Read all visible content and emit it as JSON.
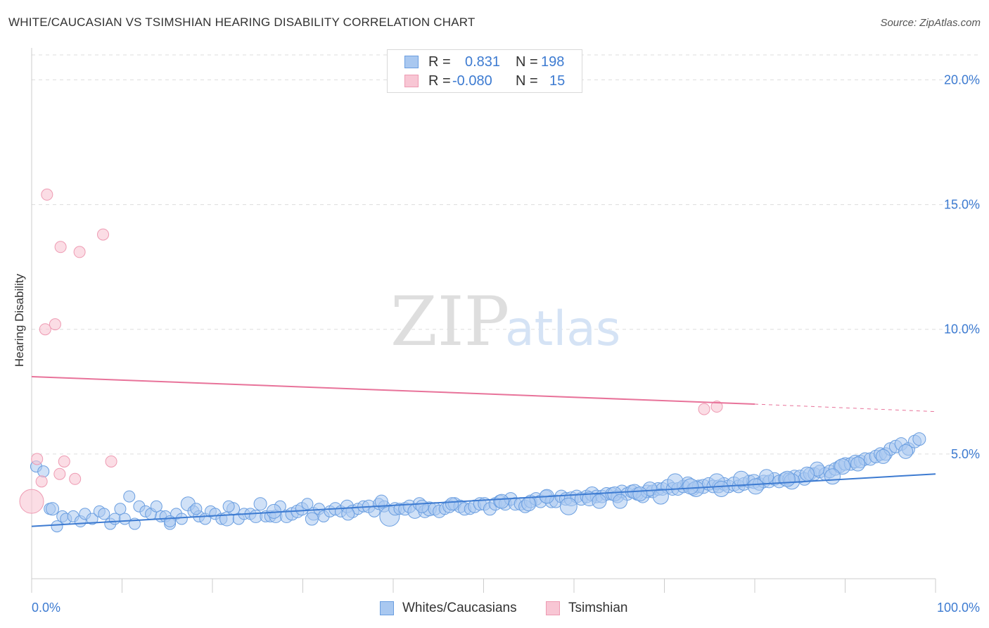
{
  "header": {
    "title": "WHITE/CAUCASIAN VS TSIMSHIAN HEARING DISABILITY CORRELATION CHART",
    "source": "Source: ZipAtlas.com"
  },
  "legend": {
    "rows": [
      {
        "r_label": "R =",
        "r_value": "0.831",
        "n_label": "N =",
        "n_value": "198"
      },
      {
        "r_label": "R =",
        "r_value": "-0.080",
        "n_label": "N =",
        "n_value": "15"
      }
    ]
  },
  "bottom_legend": {
    "series_a": "Whites/Caucasians",
    "series_b": "Tsimshian"
  },
  "watermark": {
    "part1": "ZIP",
    "part2": "atlas"
  },
  "colors": {
    "blue_fill": "#a9c8f0",
    "blue_stroke": "#6a9ee0",
    "blue_line": "#3d7bd1",
    "pink_fill": "#f8c6d4",
    "pink_stroke": "#ee9ab2",
    "pink_line": "#e8739a",
    "axis_text": "#3d7bd1"
  },
  "chart_data": {
    "type": "scatter",
    "title": "WHITE/CAUCASIAN VS TSIMSHIAN HEARING DISABILITY CORRELATION CHART",
    "xlabel": "",
    "ylabel": "Hearing Disability",
    "xlim": [
      0,
      100
    ],
    "ylim": [
      0,
      21
    ],
    "x_tick_labels": [
      "0.0%",
      "100.0%"
    ],
    "y_ticks": [
      5,
      10,
      15,
      20
    ],
    "y_tick_labels": [
      "5.0%",
      "10.0%",
      "15.0%",
      "20.0%"
    ],
    "grid": true,
    "series": [
      {
        "name": "Whites/Caucasians",
        "r": 0.831,
        "n": 198,
        "trend": {
          "x0": 0,
          "y0": 2.1,
          "x1": 100,
          "y1": 4.2
        },
        "points": [
          [
            0.5,
            4.5,
            8
          ],
          [
            1.3,
            4.3,
            8
          ],
          [
            2.0,
            2.8,
            8
          ],
          [
            2.3,
            2.8,
            9
          ],
          [
            2.8,
            2.1,
            8
          ],
          [
            3.4,
            2.5,
            8
          ],
          [
            3.8,
            2.4,
            8
          ],
          [
            4.6,
            2.5,
            8
          ],
          [
            5.4,
            2.3,
            8
          ],
          [
            5.9,
            2.6,
            8
          ],
          [
            6.7,
            2.4,
            8
          ],
          [
            7.5,
            2.7,
            8
          ],
          [
            8.0,
            2.6,
            8
          ],
          [
            8.7,
            2.2,
            8
          ],
          [
            9.2,
            2.4,
            8
          ],
          [
            9.8,
            2.8,
            8
          ],
          [
            10.3,
            2.4,
            8
          ],
          [
            10.8,
            3.3,
            8
          ],
          [
            11.4,
            2.2,
            8
          ],
          [
            11.9,
            2.9,
            8
          ],
          [
            12.6,
            2.7,
            8
          ],
          [
            13.2,
            2.6,
            8
          ],
          [
            13.8,
            2.9,
            8
          ],
          [
            14.3,
            2.5,
            8
          ],
          [
            14.8,
            2.5,
            8
          ],
          [
            15.3,
            2.2,
            8
          ],
          [
            16.0,
            2.6,
            8
          ],
          [
            16.6,
            2.4,
            8
          ],
          [
            17.3,
            3.0,
            10
          ],
          [
            17.9,
            2.7,
            8
          ],
          [
            18.5,
            2.5,
            8
          ],
          [
            19.2,
            2.4,
            8
          ],
          [
            19.8,
            2.7,
            8
          ],
          [
            20.3,
            2.6,
            8
          ],
          [
            21.0,
            2.4,
            8
          ],
          [
            21.6,
            2.4,
            10
          ],
          [
            22.3,
            2.8,
            9
          ],
          [
            22.9,
            2.4,
            8
          ],
          [
            23.5,
            2.6,
            8
          ],
          [
            24.2,
            2.6,
            8
          ],
          [
            24.8,
            2.5,
            9
          ],
          [
            25.3,
            3.0,
            9
          ],
          [
            25.9,
            2.5,
            8
          ],
          [
            26.4,
            2.5,
            8
          ],
          [
            27.0,
            2.5,
            9
          ],
          [
            27.5,
            2.9,
            8
          ],
          [
            28.2,
            2.5,
            9
          ],
          [
            28.8,
            2.6,
            9
          ],
          [
            29.4,
            2.7,
            9
          ],
          [
            29.9,
            2.8,
            9
          ],
          [
            30.5,
            3.0,
            8
          ],
          [
            31.2,
            2.6,
            9
          ],
          [
            31.8,
            2.8,
            8
          ],
          [
            32.3,
            2.5,
            8
          ],
          [
            33.0,
            2.7,
            8
          ],
          [
            33.6,
            2.8,
            9
          ],
          [
            34.2,
            2.7,
            8
          ],
          [
            34.9,
            2.9,
            9
          ],
          [
            35.5,
            2.7,
            9
          ],
          [
            36.1,
            2.8,
            8
          ],
          [
            36.7,
            2.9,
            8
          ],
          [
            37.3,
            2.9,
            9
          ],
          [
            37.9,
            2.7,
            8
          ],
          [
            38.4,
            3.0,
            8
          ],
          [
            39.0,
            2.9,
            8
          ],
          [
            39.6,
            2.5,
            14
          ],
          [
            40.2,
            2.8,
            9
          ],
          [
            40.7,
            2.8,
            8
          ],
          [
            41.3,
            2.8,
            9
          ],
          [
            41.8,
            2.9,
            9
          ],
          [
            42.4,
            2.7,
            10
          ],
          [
            42.9,
            3.0,
            9
          ],
          [
            43.5,
            2.7,
            9
          ],
          [
            44.0,
            2.8,
            10
          ],
          [
            44.6,
            2.8,
            9
          ],
          [
            45.1,
            2.7,
            9
          ],
          [
            45.7,
            2.8,
            8
          ],
          [
            46.2,
            2.9,
            9
          ],
          [
            46.8,
            3.0,
            9
          ],
          [
            47.4,
            2.9,
            9
          ],
          [
            47.9,
            2.8,
            9
          ],
          [
            48.5,
            2.8,
            8
          ],
          [
            49.0,
            2.9,
            9
          ],
          [
            49.6,
            3.0,
            9
          ],
          [
            50.1,
            3.0,
            9
          ],
          [
            50.7,
            2.8,
            9
          ],
          [
            51.3,
            3.0,
            9
          ],
          [
            51.8,
            3.1,
            9
          ],
          [
            52.4,
            3.0,
            9
          ],
          [
            53.0,
            3.2,
            9
          ],
          [
            53.5,
            3.0,
            9
          ],
          [
            54.1,
            3.0,
            9
          ],
          [
            54.6,
            2.9,
            9
          ],
          [
            55.2,
            3.1,
            9
          ],
          [
            55.8,
            3.2,
            9
          ],
          [
            56.3,
            3.1,
            9
          ],
          [
            56.9,
            3.3,
            9
          ],
          [
            57.5,
            3.1,
            9
          ],
          [
            58.0,
            3.1,
            9
          ],
          [
            58.6,
            3.3,
            9
          ],
          [
            59.1,
            3.2,
            9
          ],
          [
            59.7,
            3.2,
            10
          ],
          [
            60.3,
            3.3,
            9
          ],
          [
            60.8,
            3.2,
            9
          ],
          [
            61.4,
            3.3,
            9
          ],
          [
            62.0,
            3.4,
            10
          ],
          [
            62.5,
            3.3,
            9
          ],
          [
            63.1,
            3.3,
            9
          ],
          [
            63.6,
            3.4,
            9
          ],
          [
            64.2,
            3.4,
            9
          ],
          [
            64.8,
            3.3,
            9
          ],
          [
            65.3,
            3.5,
            9
          ],
          [
            65.9,
            3.4,
            9
          ],
          [
            66.4,
            3.5,
            9
          ],
          [
            67.0,
            3.4,
            9
          ],
          [
            67.6,
            3.3,
            9
          ],
          [
            68.1,
            3.5,
            9
          ],
          [
            68.7,
            3.5,
            9
          ],
          [
            69.3,
            3.6,
            9
          ],
          [
            69.8,
            3.6,
            9
          ],
          [
            70.4,
            3.7,
            10
          ],
          [
            70.9,
            3.6,
            9
          ],
          [
            71.5,
            3.6,
            9
          ],
          [
            72.1,
            3.7,
            9
          ],
          [
            72.6,
            3.8,
            10
          ],
          [
            73.2,
            3.6,
            9
          ],
          [
            73.8,
            3.7,
            9
          ],
          [
            74.3,
            3.7,
            10
          ],
          [
            74.9,
            3.8,
            9
          ],
          [
            75.4,
            3.7,
            9
          ],
          [
            76.0,
            3.7,
            9
          ],
          [
            76.6,
            3.8,
            9
          ],
          [
            77.1,
            3.7,
            9
          ],
          [
            77.7,
            3.8,
            10
          ],
          [
            78.2,
            3.7,
            9
          ],
          [
            78.8,
            3.8,
            9
          ],
          [
            79.4,
            3.9,
            9
          ],
          [
            79.9,
            3.9,
            10
          ],
          [
            80.5,
            3.8,
            9
          ],
          [
            81.0,
            3.9,
            9
          ],
          [
            81.6,
            3.9,
            9
          ],
          [
            82.2,
            4.0,
            9
          ],
          [
            82.7,
            3.9,
            9
          ],
          [
            83.3,
            4.0,
            9
          ],
          [
            83.8,
            4.0,
            9
          ],
          [
            84.4,
            4.1,
            9
          ],
          [
            85.0,
            4.1,
            9
          ],
          [
            85.5,
            4.0,
            9
          ],
          [
            86.1,
            4.2,
            9
          ],
          [
            86.6,
            4.2,
            9
          ],
          [
            87.2,
            4.3,
            9
          ],
          [
            87.8,
            4.2,
            9
          ],
          [
            88.3,
            4.3,
            9
          ],
          [
            88.9,
            4.4,
            9
          ],
          [
            89.4,
            4.5,
            9
          ],
          [
            90.0,
            4.6,
            9
          ],
          [
            90.6,
            4.6,
            9
          ],
          [
            91.1,
            4.7,
            9
          ],
          [
            91.7,
            4.7,
            9
          ],
          [
            92.2,
            4.8,
            9
          ],
          [
            92.8,
            4.8,
            9
          ],
          [
            93.4,
            4.9,
            9
          ],
          [
            93.9,
            5.0,
            9
          ],
          [
            94.5,
            5.0,
            9
          ],
          [
            95.0,
            5.2,
            9
          ],
          [
            95.6,
            5.3,
            9
          ],
          [
            96.2,
            5.4,
            9
          ],
          [
            97.0,
            5.2,
            9
          ],
          [
            97.7,
            5.5,
            9
          ],
          [
            98.2,
            5.6,
            9
          ],
          [
            15.3,
            2.3,
            8
          ],
          [
            18.2,
            2.8,
            8
          ],
          [
            21.8,
            2.9,
            8
          ],
          [
            26.8,
            2.7,
            10
          ],
          [
            31.0,
            2.4,
            9
          ],
          [
            35.0,
            2.6,
            9
          ],
          [
            38.7,
            3.1,
            9
          ],
          [
            43.2,
            2.9,
            9
          ],
          [
            46.5,
            3.0,
            9
          ],
          [
            52.0,
            3.1,
            10
          ],
          [
            55.0,
            3.0,
            10
          ],
          [
            57.0,
            3.3,
            10
          ],
          [
            59.4,
            2.9,
            12
          ],
          [
            61.7,
            3.2,
            10
          ],
          [
            64.5,
            3.4,
            10
          ],
          [
            66.7,
            3.5,
            10
          ],
          [
            68.4,
            3.6,
            10
          ],
          [
            71.2,
            3.9,
            11
          ],
          [
            73.5,
            3.6,
            11
          ],
          [
            75.8,
            3.9,
            11
          ],
          [
            78.5,
            4.0,
            11
          ],
          [
            81.3,
            4.1,
            10
          ],
          [
            84.1,
            3.9,
            11
          ],
          [
            86.9,
            4.4,
            10
          ],
          [
            89.7,
            4.5,
            11
          ],
          [
            91.4,
            4.6,
            10
          ],
          [
            94.2,
            4.9,
            10
          ],
          [
            96.7,
            5.1,
            10
          ],
          [
            62.8,
            3.1,
            10
          ],
          [
            65.1,
            3.1,
            10
          ],
          [
            67.3,
            3.4,
            10
          ],
          [
            69.6,
            3.3,
            11
          ],
          [
            72.9,
            3.7,
            11
          ],
          [
            76.3,
            3.6,
            11
          ],
          [
            80.1,
            3.7,
            11
          ],
          [
            83.6,
            4.0,
            11
          ],
          [
            85.8,
            4.2,
            10
          ],
          [
            88.6,
            4.1,
            11
          ]
        ]
      },
      {
        "name": "Tsimshian",
        "r": -0.08,
        "n": 15,
        "trend": {
          "x0": 0,
          "y0": 8.1,
          "x1": 80,
          "y1": 7.0,
          "dash_to_x": 100,
          "dash_to_y": 6.7
        },
        "points": [
          [
            1.7,
            15.4,
            8
          ],
          [
            3.2,
            13.3,
            8
          ],
          [
            5.3,
            13.1,
            8
          ],
          [
            7.9,
            13.8,
            8
          ],
          [
            1.5,
            10.0,
            8
          ],
          [
            2.6,
            10.2,
            8
          ],
          [
            0.6,
            4.8,
            8
          ],
          [
            3.6,
            4.7,
            8
          ],
          [
            8.8,
            4.7,
            8
          ],
          [
            3.1,
            4.2,
            8
          ],
          [
            1.1,
            3.9,
            8
          ],
          [
            4.8,
            4.0,
            8
          ],
          [
            0.0,
            3.1,
            17
          ],
          [
            74.4,
            6.8,
            8
          ],
          [
            75.8,
            6.9,
            8
          ]
        ]
      }
    ]
  }
}
